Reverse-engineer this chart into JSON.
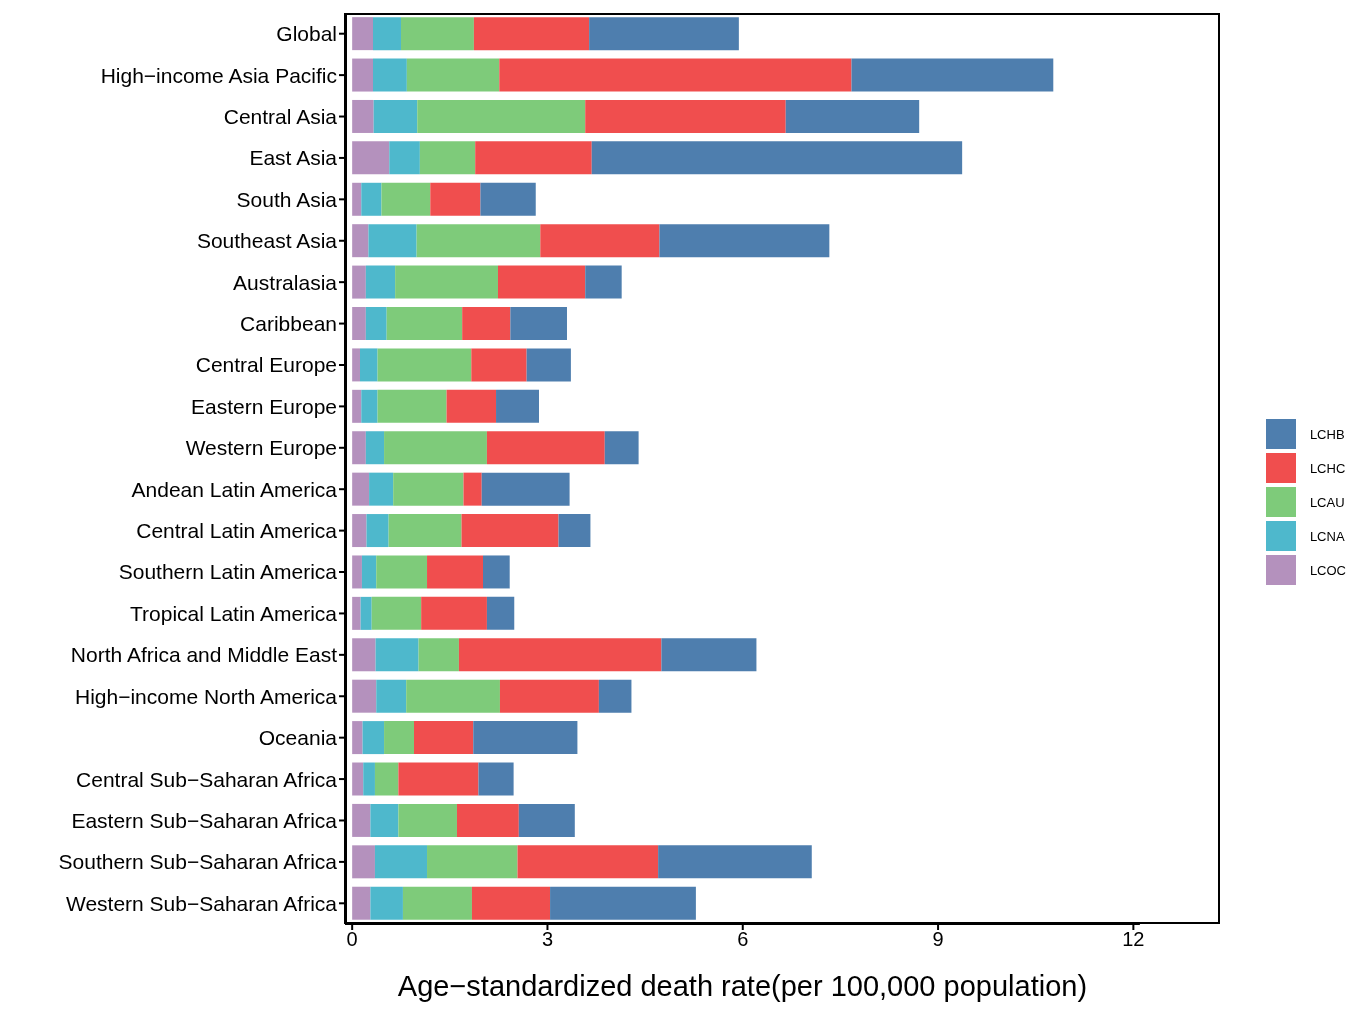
{
  "chart_data": {
    "type": "bar",
    "orientation": "horizontal",
    "stacked": true,
    "xlabel": "Age−standardized death rate(per 100,000 population)",
    "categories": [
      "Global",
      "High−income Asia Pacific",
      "Central Asia",
      "East Asia",
      "South Asia",
      "Southeast Asia",
      "Australasia",
      "Caribbean",
      "Central Europe",
      "Eastern Europe",
      "Western Europe",
      "Andean Latin America",
      "Central Latin America",
      "Southern Latin America",
      "Tropical Latin America",
      "North Africa and Middle East",
      "High−income North America",
      "Oceania",
      "Central Sub−Saharan Africa",
      "Eastern Sub−Saharan Africa",
      "Southern Sub−Saharan Africa",
      "Western Sub−Saharan Africa"
    ],
    "series": [
      {
        "name": "LCOC",
        "color": "#b491bd",
        "values": [
          0.32,
          0.32,
          0.33,
          0.57,
          0.14,
          0.25,
          0.21,
          0.21,
          0.12,
          0.14,
          0.21,
          0.26,
          0.22,
          0.15,
          0.13,
          0.36,
          0.37,
          0.16,
          0.17,
          0.28,
          0.35,
          0.28
        ]
      },
      {
        "name": "LCNA",
        "color": "#4eb8cc",
        "values": [
          0.43,
          0.52,
          0.67,
          0.47,
          0.31,
          0.74,
          0.45,
          0.32,
          0.27,
          0.25,
          0.28,
          0.37,
          0.34,
          0.22,
          0.17,
          0.66,
          0.46,
          0.33,
          0.18,
          0.43,
          0.8,
          0.5
        ]
      },
      {
        "name": "LCAU",
        "color": "#7ecb7a",
        "values": [
          1.12,
          1.42,
          2.58,
          0.85,
          0.75,
          1.9,
          1.58,
          1.16,
          1.44,
          1.06,
          1.58,
          1.08,
          1.12,
          0.78,
          0.76,
          0.62,
          1.44,
          0.46,
          0.36,
          0.9,
          1.39,
          1.06
        ]
      },
      {
        "name": "LCHC",
        "color": "#f04e4e",
        "values": [
          1.77,
          5.41,
          3.08,
          1.79,
          0.77,
          1.83,
          1.34,
          0.74,
          0.85,
          0.76,
          1.81,
          0.28,
          1.49,
          0.86,
          1.01,
          3.11,
          1.52,
          0.91,
          1.23,
          0.95,
          2.16,
          1.2
        ]
      },
      {
        "name": "LCHB",
        "color": "#4e7eae",
        "values": [
          2.3,
          3.1,
          2.05,
          5.69,
          0.85,
          2.61,
          0.56,
          0.87,
          0.68,
          0.66,
          0.52,
          1.35,
          0.49,
          0.41,
          0.42,
          1.46,
          0.5,
          1.6,
          0.54,
          0.86,
          2.36,
          2.24
        ]
      }
    ],
    "xlim": [
      -0.11,
      12.1
    ],
    "xticks": [
      0,
      3,
      6,
      9,
      12
    ],
    "grid": false,
    "legend": "right"
  }
}
